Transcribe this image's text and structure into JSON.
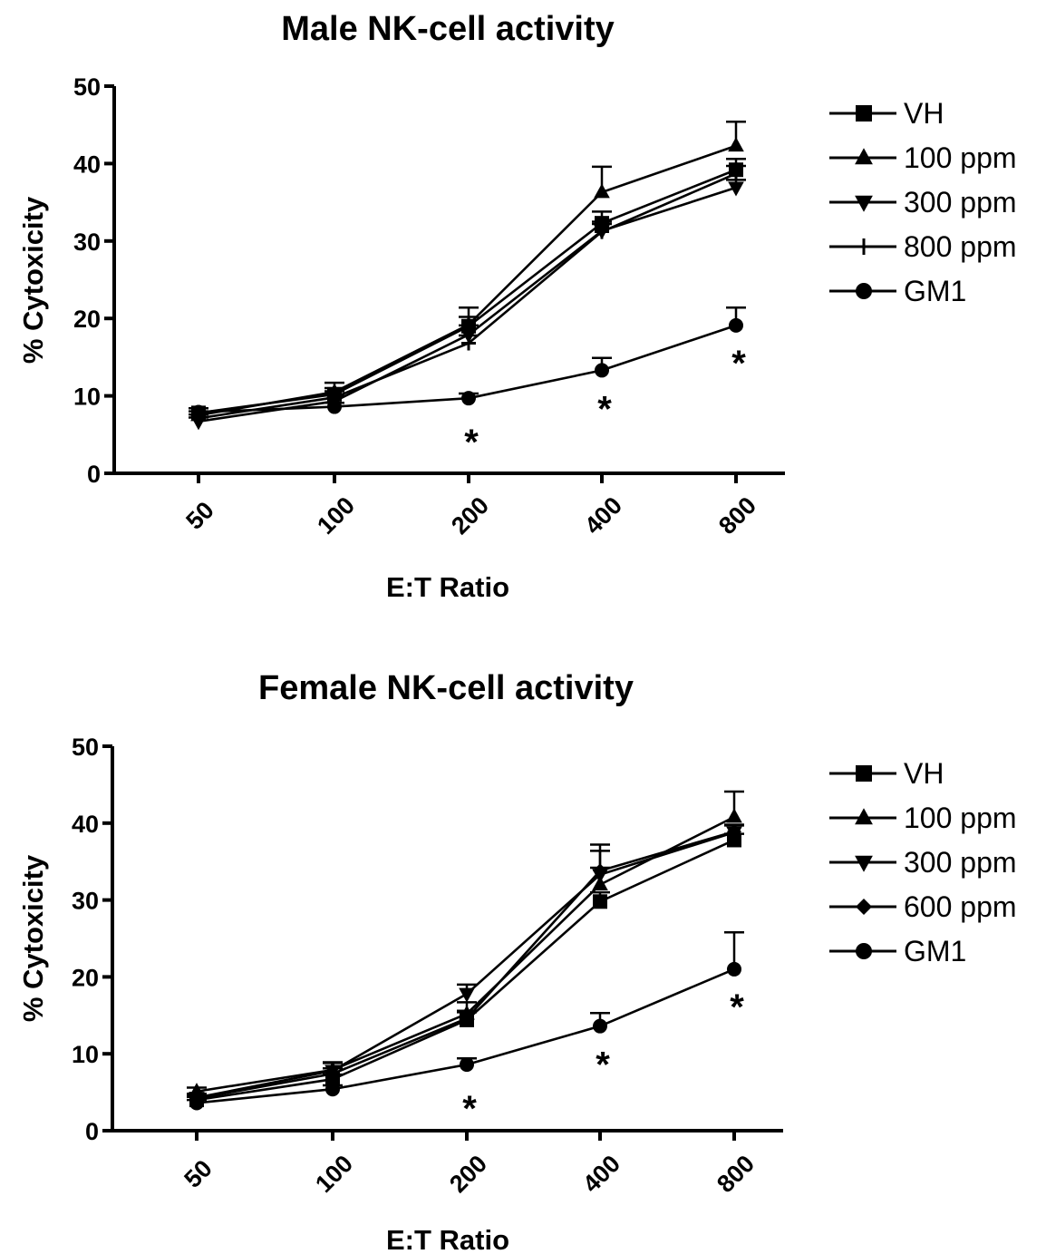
{
  "chart_data": [
    {
      "type": "line",
      "title": "Male NK-cell activity",
      "xlabel": "E:T Ratio",
      "ylabel": "% Cytoxicity",
      "categories": [
        "50",
        "100",
        "200",
        "400",
        "800"
      ],
      "ylim": [
        0,
        50
      ],
      "yticks": [
        0,
        10,
        20,
        30,
        40,
        50
      ],
      "legend_position": "right",
      "significance_marker": "*",
      "significance_at": [
        "200",
        "400",
        "800"
      ],
      "series": [
        {
          "name": "VH",
          "marker": "square",
          "values": [
            7.8,
            10.2,
            19.0,
            32.3,
            39.2
          ],
          "errors": [
            0.6,
            0.8,
            1.2,
            1.5,
            1.4
          ]
        },
        {
          "name": "100 ppm",
          "marker": "triangle-up",
          "values": [
            7.5,
            10.5,
            19.2,
            36.3,
            42.3
          ],
          "errors": [
            0.5,
            1.2,
            2.2,
            3.3,
            3.1
          ]
        },
        {
          "name": "300 ppm",
          "marker": "triangle-down",
          "values": [
            6.7,
            9.3,
            17.9,
            31.3,
            36.9
          ],
          "errors": [
            0.5,
            0.8,
            1.2,
            1.2,
            1.0
          ]
        },
        {
          "name": "800 ppm",
          "marker": "plus",
          "values": [
            7.1,
            9.8,
            16.8,
            31.2,
            38.7
          ],
          "errors": [
            0.5,
            0.8,
            1.0,
            1.0,
            1.0
          ]
        },
        {
          "name": "GM1",
          "marker": "circle",
          "values": [
            7.9,
            8.6,
            9.7,
            13.3,
            19.1
          ],
          "errors": [
            0.5,
            0.5,
            0.6,
            1.6,
            2.3
          ]
        }
      ]
    },
    {
      "type": "line",
      "title": "Female NK-cell activity",
      "xlabel": "E:T Ratio",
      "ylabel": "% Cytoxicity",
      "categories": [
        "50",
        "100",
        "200",
        "400",
        "800"
      ],
      "ylim": [
        0,
        50
      ],
      "yticks": [
        0,
        10,
        20,
        30,
        40,
        50
      ],
      "legend_position": "right",
      "significance_marker": "*",
      "significance_at": [
        "200",
        "400",
        "800"
      ],
      "series": [
        {
          "name": "VH",
          "marker": "square",
          "values": [
            4.0,
            6.7,
            14.4,
            29.8,
            37.8
          ],
          "errors": [
            0.4,
            0.6,
            1.0,
            1.2,
            0.8
          ]
        },
        {
          "name": "100 ppm",
          "marker": "triangle-up",
          "values": [
            5.1,
            7.9,
            15.2,
            32.0,
            40.8
          ],
          "errors": [
            0.5,
            1.0,
            1.5,
            2.2,
            3.3
          ]
        },
        {
          "name": "300 ppm",
          "marker": "triangle-down",
          "values": [
            4.3,
            7.8,
            17.8,
            33.3,
            38.8
          ],
          "errors": [
            0.5,
            1.0,
            1.2,
            3.9,
            1.0
          ]
        },
        {
          "name": "600 ppm",
          "marker": "diamond",
          "values": [
            4.2,
            7.4,
            14.6,
            33.8,
            38.9
          ],
          "errors": [
            0.4,
            0.7,
            1.0,
            2.6,
            0.8
          ]
        },
        {
          "name": "GM1",
          "marker": "circle",
          "values": [
            3.6,
            5.4,
            8.6,
            13.6,
            21.0
          ],
          "errors": [
            0.4,
            0.5,
            0.8,
            1.7,
            4.8
          ]
        }
      ]
    }
  ]
}
